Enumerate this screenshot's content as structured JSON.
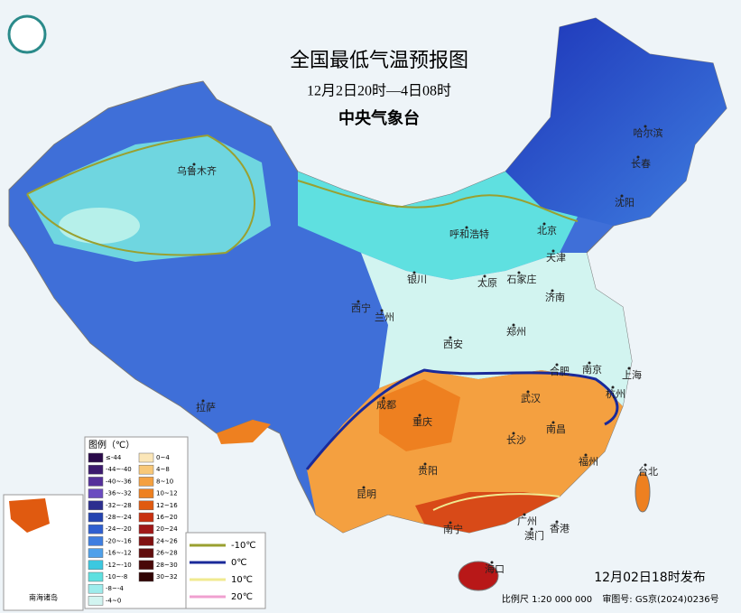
{
  "header": {
    "title": "全国最低气温预报图",
    "subtitle": "12月2日20时—4日08时",
    "issuer": "中央气象台"
  },
  "cities": [
    "乌鲁木齐",
    "哈尔滨",
    "长春",
    "沈阳",
    "北京",
    "呼和浩特",
    "天津",
    "石家庄",
    "太原",
    "银川",
    "西宁",
    "兰州",
    "济南",
    "郑州",
    "西安",
    "合肥",
    "南京",
    "上海",
    "杭州",
    "武汉",
    "成都",
    "重庆",
    "拉萨",
    "长沙",
    "南昌",
    "贵阳",
    "昆明",
    "福州",
    "台北",
    "南宁",
    "广州",
    "澳门",
    "香港",
    "海口"
  ],
  "legend": {
    "title": "图例（℃）",
    "left": [
      {
        "label": "≤-44",
        "color": "#2a0a4a"
      },
      {
        "label": "-44~-40",
        "color": "#3c1a6e"
      },
      {
        "label": "-40~-36",
        "color": "#55309a"
      },
      {
        "label": "-36~-32",
        "color": "#6a4bc0"
      },
      {
        "label": "-32~-28",
        "color": "#2c2f8f"
      },
      {
        "label": "-28~-24",
        "color": "#2444b0"
      },
      {
        "label": "-24~-20",
        "color": "#2f5fd0"
      },
      {
        "label": "-20~-16",
        "color": "#3f7ee0"
      },
      {
        "label": "-16~-12",
        "color": "#4fa0ea"
      },
      {
        "label": "-12~-10",
        "color": "#3cc8e0"
      },
      {
        "label": "-10~-8",
        "color": "#5fe0e0"
      },
      {
        "label": "-8~-4",
        "color": "#9eecec"
      },
      {
        "label": "-4~0",
        "color": "#d2f4f0"
      }
    ],
    "right": [
      {
        "label": "0~4",
        "color": "#fbe6b8"
      },
      {
        "label": "4~8",
        "color": "#f8c878"
      },
      {
        "label": "8~10",
        "color": "#f4a040"
      },
      {
        "label": "10~12",
        "color": "#ee8020"
      },
      {
        "label": "12~16",
        "color": "#e05a10"
      },
      {
        "label": "16~20",
        "color": "#c83010"
      },
      {
        "label": "20~24",
        "color": "#a01818"
      },
      {
        "label": "24~26",
        "color": "#801010"
      },
      {
        "label": "26~28",
        "color": "#600c0c"
      },
      {
        "label": "28~30",
        "color": "#480808"
      },
      {
        "label": "30~32",
        "color": "#300404"
      }
    ]
  },
  "contours": [
    {
      "label": "-10℃",
      "color": "#9aa030"
    },
    {
      "label": "0℃",
      "color": "#1a2a9a"
    },
    {
      "label": "10℃",
      "color": "#f0ea90"
    },
    {
      "label": "20℃",
      "color": "#f0a0d0"
    }
  ],
  "inset": "南海诸岛",
  "footer": {
    "release": "12月02日18时发布",
    "scale": "比例尺  1:20 000 000",
    "approval": "审图号: GS京(2024)0236号"
  }
}
